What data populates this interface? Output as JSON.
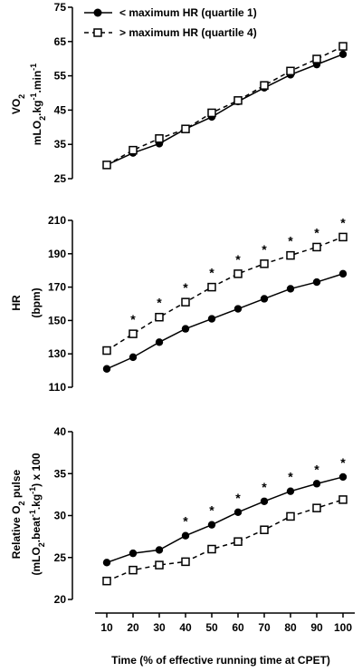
{
  "legend": [
    {
      "marker": "filled-circle",
      "line": "solid",
      "label": "< maximum HR (quartile 1)"
    },
    {
      "marker": "open-square",
      "line": "dashed",
      "label": "> maximum HR (quartile 4)"
    }
  ],
  "xlabel": "Time (% of effective running time at CPET)",
  "chart_data": [
    {
      "type": "line",
      "panel": "top",
      "ylabel_line1": "VO",
      "ylabel_line1_sub": "2",
      "ylabel_line2": "mLO2.kg-1.min-1",
      "ylim": [
        25,
        75
      ],
      "yticks": [
        25,
        35,
        45,
        55,
        65,
        75
      ],
      "x": [
        10,
        20,
        30,
        40,
        50,
        60,
        70,
        80,
        90,
        100
      ],
      "xticks": [
        10,
        20,
        30,
        40,
        50,
        60,
        70,
        80,
        90,
        100
      ],
      "series": [
        {
          "name": "< maximum HR (quartile 1)",
          "values": [
            29,
            32.5,
            35.2,
            39.5,
            43,
            47.5,
            51.5,
            55.3,
            58.3,
            61.3
          ]
        },
        {
          "name": "> maximum HR (quartile 4)",
          "values": [
            29,
            33.3,
            36.7,
            39.5,
            44.2,
            47.8,
            52.2,
            56.4,
            59.9,
            63.6
          ]
        }
      ],
      "significance_x": []
    },
    {
      "type": "line",
      "panel": "middle",
      "ylabel_line1": "HR",
      "ylabel_line2": "(bpm)",
      "ylim": [
        110,
        210
      ],
      "yticks": [
        110,
        130,
        150,
        170,
        190,
        210
      ],
      "x": [
        10,
        20,
        30,
        40,
        50,
        60,
        70,
        80,
        90,
        100
      ],
      "series": [
        {
          "name": "< maximum HR (quartile 1)",
          "values": [
            121,
            128,
            137,
            145,
            151,
            157,
            163,
            169,
            173,
            178
          ]
        },
        {
          "name": "> maximum HR (quartile 4)",
          "values": [
            132,
            142,
            152,
            161,
            170,
            178,
            184,
            189,
            194,
            200
          ]
        }
      ],
      "significance_x": [
        20,
        30,
        40,
        50,
        60,
        70,
        80,
        90,
        100
      ],
      "significance_symbol": "*"
    },
    {
      "type": "line",
      "panel": "bottom",
      "ylabel_line1": "Relative O2 pulse",
      "ylabel_line2": "(mLO2.beat-1.kg-1) x 100",
      "ylim": [
        20,
        40
      ],
      "yticks": [
        20,
        25,
        30,
        35,
        40
      ],
      "x": [
        10,
        20,
        30,
        40,
        50,
        60,
        70,
        80,
        90,
        100
      ],
      "series": [
        {
          "name": "< maximum HR (quartile 1)",
          "values": [
            24.4,
            25.5,
            25.9,
            27.6,
            28.9,
            30.4,
            31.7,
            32.9,
            33.8,
            34.6
          ]
        },
        {
          "name": "> maximum HR (quartile 4)",
          "values": [
            22.2,
            23.5,
            24.1,
            24.5,
            26,
            26.9,
            28.3,
            29.9,
            30.9,
            31.9
          ]
        }
      ],
      "significance_x": [
        40,
        50,
        60,
        70,
        80,
        90,
        100
      ],
      "significance_symbol": "*"
    }
  ]
}
